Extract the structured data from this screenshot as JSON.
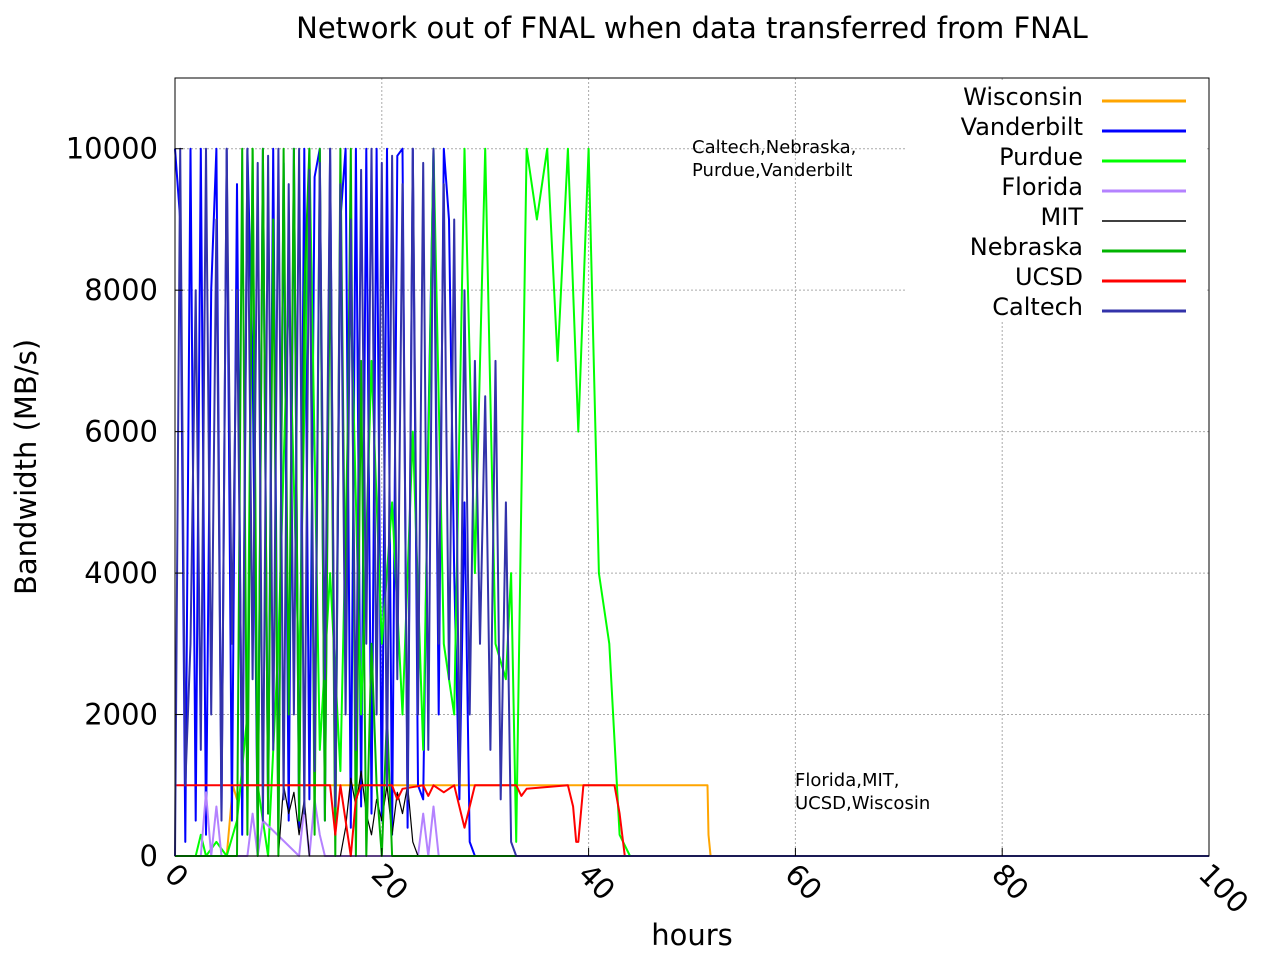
{
  "chart_data": {
    "type": "line",
    "title": "Network out of FNAL when data transferred from FNAL",
    "xlabel": "hours",
    "ylabel": "Bandwidth (MB/s)",
    "xlim": [
      0,
      100
    ],
    "ylim": [
      0,
      11000
    ],
    "x_ticks": [
      0,
      20,
      40,
      60,
      80,
      100
    ],
    "y_ticks": [
      0,
      2000,
      4000,
      6000,
      8000,
      10000
    ],
    "grid": true,
    "legend_position": "top-right",
    "annotations": [
      {
        "lines": [
          "Caltech,Nebraska,",
          "Purdue,Vanderbilt"
        ],
        "x": 50,
        "y": 10000
      },
      {
        "lines": [
          "Florida,MIT,",
          "UCSD,Wiscosin"
        ],
        "x": 60,
        "y": 1000
      }
    ],
    "series": [
      {
        "name": "Wisconsin",
        "color": "#ffa500",
        "x": [
          0,
          5,
          5.3,
          5.6,
          6,
          6.5,
          7,
          51.5,
          51.6,
          51.8,
          100
        ],
        "y": [
          0,
          0,
          500,
          1000,
          800,
          1000,
          1000,
          1000,
          300,
          0,
          0
        ]
      },
      {
        "name": "Vanderbilt",
        "color": "#0000ff",
        "x": [
          0,
          0.5,
          1,
          1.5,
          2,
          2.5,
          3,
          3.5,
          4,
          4.5,
          5,
          5.5,
          6,
          6.5,
          7,
          7.5,
          8,
          8.5,
          9,
          9.5,
          10,
          10.5,
          11,
          11.5,
          12,
          12.5,
          13,
          13.5,
          14,
          14.5,
          15,
          15.5,
          16,
          16.5,
          17,
          17.5,
          18,
          18.5,
          19,
          19.5,
          20,
          20.5,
          21,
          21.5,
          22,
          22.5,
          23,
          23.5,
          24,
          24.5,
          25,
          25.5,
          26,
          26.5,
          27,
          27.5,
          28,
          28.5,
          29,
          100
        ],
        "y": [
          10000,
          9000,
          200,
          10000,
          500,
          10000,
          300,
          8000,
          10000,
          600,
          10000,
          500,
          9500,
          300,
          10000,
          7000,
          200,
          10000,
          600,
          10000,
          300,
          9800,
          500,
          10000,
          400,
          10000,
          800,
          9600,
          10000,
          500,
          10000,
          300,
          9000,
          10000,
          400,
          10000,
          700,
          10000,
          600,
          10000,
          500,
          10000,
          300,
          9900,
          10000,
          400,
          10000,
          1000,
          800,
          6000,
          10000,
          2000,
          10000,
          9000,
          4000,
          800,
          5000,
          200,
          0,
          0
        ]
      },
      {
        "name": "Purdue",
        "color": "#00ff00",
        "x": [
          0,
          2,
          2.5,
          3,
          4,
          5,
          6,
          7,
          7.5,
          8,
          9,
          10,
          11,
          12,
          13,
          14,
          15,
          16,
          17,
          18,
          19,
          20,
          21,
          22,
          23,
          24,
          25,
          26,
          27,
          28,
          29,
          30,
          31,
          32,
          32.5,
          33,
          34,
          35,
          36,
          37,
          38,
          39,
          40,
          41,
          42,
          43,
          44,
          100
        ],
        "y": [
          0,
          0,
          300,
          0,
          200,
          0,
          500,
          2000,
          10000,
          1000,
          0,
          3000,
          8000,
          2500,
          10000,
          1500,
          4000,
          1200,
          8000,
          2000,
          7000,
          3000,
          5000,
          2000,
          6000,
          1500,
          10000,
          3000,
          2000,
          10000,
          4000,
          10000,
          3000,
          2500,
          4000,
          200,
          10000,
          9000,
          10000,
          7000,
          10000,
          6000,
          10000,
          4000,
          3000,
          300,
          0,
          0
        ]
      },
      {
        "name": "Florida",
        "color": "#b482ff",
        "x": [
          0,
          2.5,
          3,
          3.5,
          4,
          4.5,
          7,
          7.5,
          8,
          8.5,
          12,
          12.5,
          13,
          13.5,
          14,
          14.5,
          15,
          23.5,
          24,
          24.5,
          25,
          25.5,
          100
        ],
        "y": [
          0,
          0,
          900,
          0,
          700,
          0,
          0,
          600,
          0,
          500,
          0,
          700,
          0,
          800,
          300,
          0,
          0,
          0,
          600,
          0,
          700,
          0,
          0
        ]
      },
      {
        "name": "MIT",
        "color": "#000000",
        "x": [
          0,
          10,
          10.5,
          11,
          11.5,
          12,
          12.5,
          13,
          16,
          16.5,
          17,
          17.5,
          18,
          18.5,
          19,
          19.5,
          20,
          20.5,
          21,
          21.5,
          22,
          22.5,
          23,
          23.5,
          100
        ],
        "y": [
          0,
          0,
          1000,
          600,
          900,
          300,
          800,
          0,
          0,
          400,
          1100,
          700,
          1200,
          600,
          300,
          800,
          500,
          1000,
          300,
          900,
          600,
          1000,
          200,
          0,
          0
        ]
      },
      {
        "name": "Nebraska",
        "color": "#00b400",
        "x": [
          0,
          6,
          6.5,
          7,
          7.5,
          8,
          8.5,
          9,
          9.5,
          10,
          10.5,
          11,
          11.5,
          12,
          12.5,
          13,
          13.5,
          14,
          14.5,
          15,
          15.5,
          16,
          16.5,
          17,
          17.5,
          18,
          18.5,
          19,
          19.5,
          20,
          20.5,
          21,
          100
        ],
        "y": [
          0,
          0,
          10000,
          300,
          10000,
          0,
          10000,
          600,
          9000,
          0,
          10000,
          2000,
          10000,
          500,
          8000,
          10000,
          300,
          10000,
          500,
          9000,
          0,
          10000,
          3000,
          10000,
          0,
          7000,
          0,
          3000,
          1000,
          0,
          2000,
          0,
          0
        ]
      },
      {
        "name": "UCSD",
        "color": "#ff0000",
        "x": [
          0,
          15,
          15.5,
          16,
          16.5,
          17,
          17.5,
          18,
          21,
          21.5,
          22,
          24,
          24.5,
          25,
          26,
          27,
          28,
          29,
          33,
          33.5,
          34,
          38,
          38.5,
          38.8,
          39,
          39.5,
          40,
          41,
          42,
          42.5,
          43,
          43.5,
          100
        ],
        "y": [
          1000,
          1000,
          300,
          1000,
          500,
          0,
          800,
          1000,
          1000,
          800,
          950,
          1000,
          850,
          1000,
          900,
          1000,
          400,
          1000,
          1000,
          850,
          950,
          1000,
          700,
          200,
          200,
          1000,
          1000,
          1000,
          1000,
          1000,
          600,
          0,
          0
        ]
      },
      {
        "name": "Caltech",
        "color": "#3333aa",
        "x": [
          0,
          0.5,
          1,
          1.5,
          2,
          2.5,
          3,
          3.5,
          4,
          4.5,
          5,
          5.5,
          6,
          6.5,
          7,
          7.5,
          8,
          8.5,
          9,
          9.5,
          10,
          10.5,
          11,
          11.5,
          12,
          12.5,
          13,
          13.5,
          14,
          14.5,
          15,
          15.5,
          16,
          16.5,
          17,
          17.5,
          18,
          18.5,
          19,
          19.5,
          20,
          20.5,
          21,
          21.5,
          22,
          22.5,
          23,
          23.5,
          24,
          24.5,
          25,
          25.5,
          26,
          26.5,
          27,
          27.5,
          28,
          28.5,
          29,
          29.5,
          30,
          30.5,
          31,
          31.5,
          32,
          32.5,
          33,
          100
        ],
        "y": [
          0,
          10000,
          1000,
          3000,
          8000,
          1500,
          10000,
          2000,
          9000,
          500,
          10000,
          3000,
          8000,
          1000,
          10000,
          2500,
          9800,
          500,
          9900,
          1500,
          10000,
          800,
          9500,
          2000,
          10000,
          600,
          9700,
          1200,
          9800,
          2500,
          10000,
          700,
          9500,
          2000,
          9000,
          1500,
          9700,
          3000,
          10000,
          2000,
          9800,
          1000,
          9900,
          2500,
          9500,
          800,
          10000,
          2000,
          9800,
          1500,
          10000,
          3000,
          9500,
          2500,
          9000,
          1000,
          8000,
          2000,
          7000,
          3000,
          6500,
          1500,
          7000,
          800,
          5000,
          200,
          0,
          0
        ]
      }
    ]
  }
}
